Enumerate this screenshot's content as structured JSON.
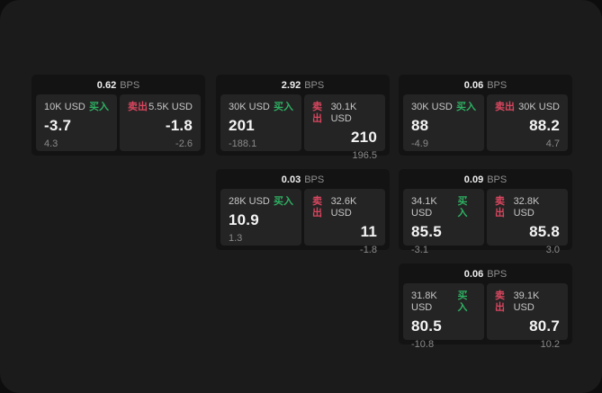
{
  "colors": {
    "buy_green": "#2eb062",
    "sell_red": "#d8465f",
    "page_bg": "#1b1b1b",
    "card_bg": "#131313",
    "panel_bg": "#242424"
  },
  "labels": {
    "bps_unit": "BPS",
    "buy": "买入",
    "sell": "卖出"
  },
  "cards": [
    {
      "bps": "0.62",
      "buy": {
        "amount": "10K USD",
        "price": "-3.7",
        "delta": "4.3"
      },
      "sell": {
        "amount": "5.5K USD",
        "price": "-1.8",
        "delta": "-2.6"
      }
    },
    {
      "bps": "2.92",
      "buy": {
        "amount": "30K USD",
        "price": "201",
        "delta": "-188.1"
      },
      "sell": {
        "amount": "30.1K USD",
        "price": "210",
        "delta": "196.5"
      }
    },
    {
      "bps": "0.06",
      "buy": {
        "amount": "30K USD",
        "price": "88",
        "delta": "-4.9"
      },
      "sell": {
        "amount": "30K USD",
        "price": "88.2",
        "delta": "4.7"
      }
    },
    {
      "bps": "0.03",
      "buy": {
        "amount": "28K USD",
        "price": "10.9",
        "delta": "1.3"
      },
      "sell": {
        "amount": "32.6K USD",
        "price": "11",
        "delta": "-1.8"
      }
    },
    {
      "bps": "0.09",
      "buy": {
        "amount": "34.1K USD",
        "price": "85.5",
        "delta": "-3.1"
      },
      "sell": {
        "amount": "32.8K USD",
        "price": "85.8",
        "delta": "3.0"
      }
    },
    {
      "bps": "0.06",
      "buy": {
        "amount": "31.8K USD",
        "price": "80.5",
        "delta": "-10.8"
      },
      "sell": {
        "amount": "39.1K USD",
        "price": "80.7",
        "delta": "10.2"
      }
    }
  ]
}
